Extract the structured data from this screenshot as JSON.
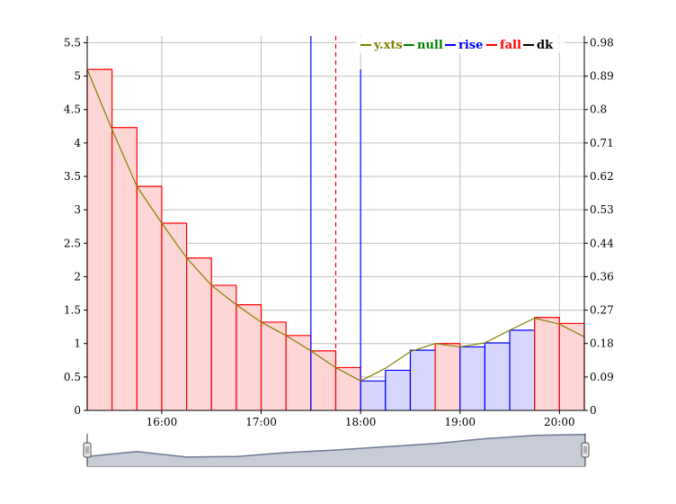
{
  "chart_data": {
    "type": "area",
    "x_ticks": [
      "16:00",
      "17:00",
      "18:00",
      "19:00",
      "20:00"
    ],
    "x_tick_values": [
      16,
      17,
      18,
      19,
      20
    ],
    "xlim": [
      15.25,
      20.25
    ],
    "y_left_ticks": [
      "0",
      "0.5",
      "1",
      "1.5",
      "2",
      "2.5",
      "3",
      "3.5",
      "4",
      "4.5",
      "5",
      "5.5"
    ],
    "y_left_values": [
      0,
      0.5,
      1,
      1.5,
      2,
      2.5,
      3,
      3.5,
      4,
      4.5,
      5,
      5.5
    ],
    "ylim": [
      0,
      5.6
    ],
    "y_right_ticks": [
      "0",
      "0.09",
      "0.18",
      "0.27",
      "0.36",
      "0.44",
      "0.53",
      "0.62",
      "0.71",
      "0.8",
      "0.89",
      "0.98"
    ],
    "grid": true,
    "legend_position": "top-right",
    "legend": [
      {
        "label": "y.xts",
        "color": "#808000"
      },
      {
        "label": "null",
        "color": "#008000"
      },
      {
        "label": "rise",
        "color": "#0000ff"
      },
      {
        "label": "fall",
        "color": "#ff0000"
      },
      {
        "label": "dk",
        "color": "#000000"
      }
    ],
    "series": [
      {
        "name": "y.xts",
        "x": [
          15.25,
          15.5,
          15.75,
          16.0,
          16.25,
          16.5,
          16.75,
          17.0,
          17.25,
          17.5,
          17.75,
          18.0,
          18.25,
          18.5,
          18.75,
          19.0,
          19.25,
          19.5,
          19.75,
          20.0,
          20.25
        ],
        "values": [
          5.1,
          4.2,
          3.35,
          2.8,
          2.28,
          1.87,
          1.58,
          1.32,
          1.12,
          0.89,
          0.64,
          0.44,
          0.63,
          0.88,
          1.0,
          0.95,
          1.01,
          1.2,
          1.38,
          1.29,
          1.1
        ]
      }
    ],
    "steps": [
      {
        "series": "fall",
        "x0": 15.25,
        "x1": 15.5,
        "value": 5.1
      },
      {
        "series": "fall",
        "x0": 15.5,
        "x1": 15.75,
        "value": 4.23
      },
      {
        "series": "fall",
        "x0": 15.75,
        "x1": 16.0,
        "value": 3.35
      },
      {
        "series": "fall",
        "x0": 16.0,
        "x1": 16.25,
        "value": 2.8
      },
      {
        "series": "fall",
        "x0": 16.25,
        "x1": 16.5,
        "value": 2.28
      },
      {
        "series": "fall",
        "x0": 16.5,
        "x1": 16.75,
        "value": 1.87
      },
      {
        "series": "fall",
        "x0": 16.75,
        "x1": 17.0,
        "value": 1.58
      },
      {
        "series": "fall",
        "x0": 17.0,
        "x1": 17.25,
        "value": 1.32
      },
      {
        "series": "fall",
        "x0": 17.25,
        "x1": 17.5,
        "value": 1.12
      },
      {
        "series": "fall",
        "x0": 17.5,
        "x1": 17.75,
        "value": 0.89
      },
      {
        "series": "fall",
        "x0": 17.75,
        "x1": 18.0,
        "value": 0.64
      },
      {
        "series": "rise",
        "x0": 18.0,
        "x1": 18.25,
        "value": 0.44
      },
      {
        "series": "rise",
        "x0": 18.25,
        "x1": 18.5,
        "value": 0.6
      },
      {
        "series": "rise",
        "x0": 18.5,
        "x1": 18.75,
        "value": 0.9
      },
      {
        "series": "fall",
        "x0": 18.75,
        "x1": 19.0,
        "value": 1.0
      },
      {
        "series": "rise",
        "x0": 19.0,
        "x1": 19.25,
        "value": 0.95
      },
      {
        "series": "rise",
        "x0": 19.25,
        "x1": 19.5,
        "value": 1.01
      },
      {
        "series": "rise",
        "x0": 19.5,
        "x1": 19.75,
        "value": 1.2
      },
      {
        "series": "fall",
        "x0": 19.75,
        "x1": 20.0,
        "value": 1.39
      },
      {
        "series": "fall",
        "x0": 20.0,
        "x1": 20.25,
        "value": 1.3
      }
    ],
    "event_lines": [
      {
        "x": 17.5,
        "color": "#0000ff",
        "style": "solid",
        "top": 5.6
      },
      {
        "x": 17.75,
        "color": "#ff0000",
        "style": "dashed",
        "top": 5.6
      },
      {
        "x": 18.0,
        "color": "#0000ff",
        "style": "solid",
        "top": 5.1
      }
    ],
    "colors": {
      "fall_fill": "#ffd6d6",
      "fall_stroke": "#ff0000",
      "rise_fill": "#d6d6ff",
      "rise_stroke": "#0000ff",
      "line": "#808000",
      "grid": "#c0c0c0"
    },
    "range_selector": {
      "values": [
        0.3,
        0.45,
        0.28,
        0.3,
        0.42,
        0.5,
        0.6,
        0.7,
        0.85,
        0.95,
        0.98
      ],
      "fill": "#c8ccd6",
      "stroke": "#6d7a95"
    }
  }
}
